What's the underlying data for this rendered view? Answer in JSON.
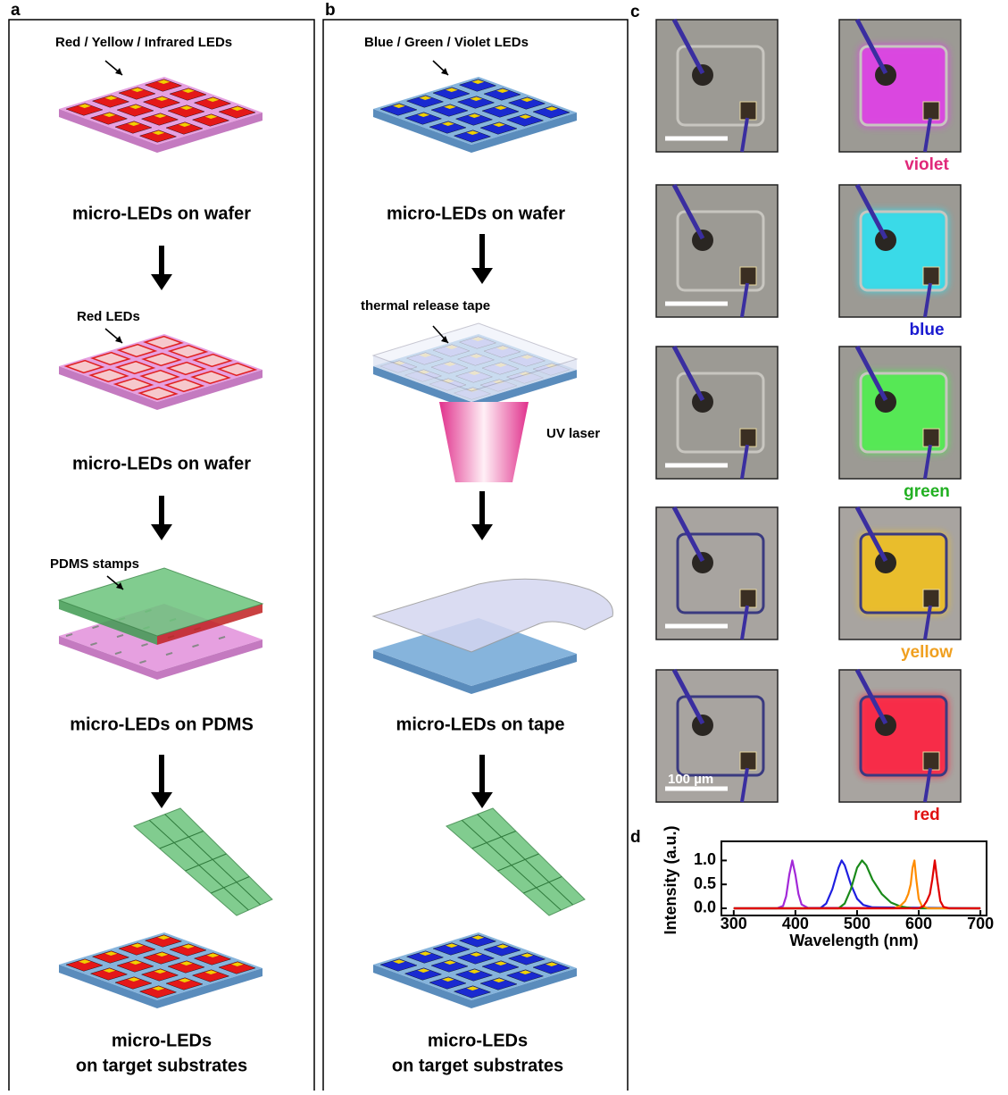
{
  "panel_a": {
    "label": "a",
    "source_label": "Red / Yellow / Infrared LEDs",
    "step1": "micro-LEDs on wafer",
    "selected_label": "Red LEDs",
    "step2": "micro-LEDs on wafer",
    "stamp_label": "PDMS stamps",
    "step3": "micro-LEDs on PDMS",
    "final_line1": "micro-LEDs",
    "final_line2": "on target substrates"
  },
  "panel_b": {
    "label": "b",
    "source_label": "Blue / Green / Violet LEDs",
    "step1": "micro-LEDs on wafer",
    "tape_label": "thermal release tape",
    "laser_label": "UV laser",
    "step2": "micro-LEDs on tape",
    "final_line1": "micro-LEDs",
    "final_line2": "on target substrates"
  },
  "panel_c": {
    "label": "c",
    "colors": [
      "violet",
      "blue",
      "green",
      "yellow",
      "red"
    ],
    "scale_bar": "100 µm"
  },
  "panel_d": {
    "label": "d"
  },
  "chart_data": {
    "type": "line",
    "xlabel": "Wavelength (nm)",
    "ylabel": "Intensity (a.u.)",
    "xlim": [
      280,
      710
    ],
    "ylim": [
      -0.15,
      1.4
    ],
    "xticks": [
      300,
      400,
      500,
      600,
      700
    ],
    "yticks": [
      {
        "value": 0,
        "label": "0.0"
      },
      {
        "value": 0.5,
        "label": "0.5"
      },
      {
        "value": 1,
        "label": "1.0"
      }
    ],
    "series": [
      {
        "color": "#a228d8",
        "x": [
          300,
          370,
          380,
          385,
          390,
          395,
          400,
          405,
          410,
          420,
          700
        ],
        "values": [
          0,
          0,
          0.05,
          0.25,
          0.7,
          1.0,
          0.7,
          0.3,
          0.08,
          0.01,
          0
        ]
      },
      {
        "color": "#1e1ee0",
        "x": [
          300,
          440,
          450,
          460,
          470,
          475,
          480,
          490,
          500,
          510,
          525,
          700
        ],
        "values": [
          0,
          0,
          0.1,
          0.4,
          0.85,
          1.0,
          0.9,
          0.5,
          0.2,
          0.07,
          0.02,
          0
        ]
      },
      {
        "color": "#1a8a1a",
        "x": [
          300,
          470,
          480,
          490,
          500,
          508,
          515,
          525,
          540,
          555,
          570,
          590,
          700
        ],
        "values": [
          0,
          0,
          0.1,
          0.4,
          0.85,
          1.0,
          0.9,
          0.6,
          0.3,
          0.12,
          0.04,
          0,
          0
        ]
      },
      {
        "color": "#ff8c00",
        "x": [
          300,
          560,
          570,
          578,
          583,
          587,
          590,
          593,
          596,
          600,
          605,
          615,
          700
        ],
        "values": [
          0,
          0,
          0.05,
          0.15,
          0.3,
          0.5,
          0.85,
          1.0,
          0.6,
          0.2,
          0.05,
          0,
          0
        ]
      },
      {
        "color": "#e00000",
        "x": [
          300,
          600,
          608,
          613,
          618,
          622,
          626,
          630,
          635,
          640,
          650,
          700
        ],
        "values": [
          0,
          0,
          0.05,
          0.15,
          0.3,
          0.6,
          1.0,
          0.6,
          0.15,
          0.03,
          0,
          0
        ]
      }
    ]
  }
}
